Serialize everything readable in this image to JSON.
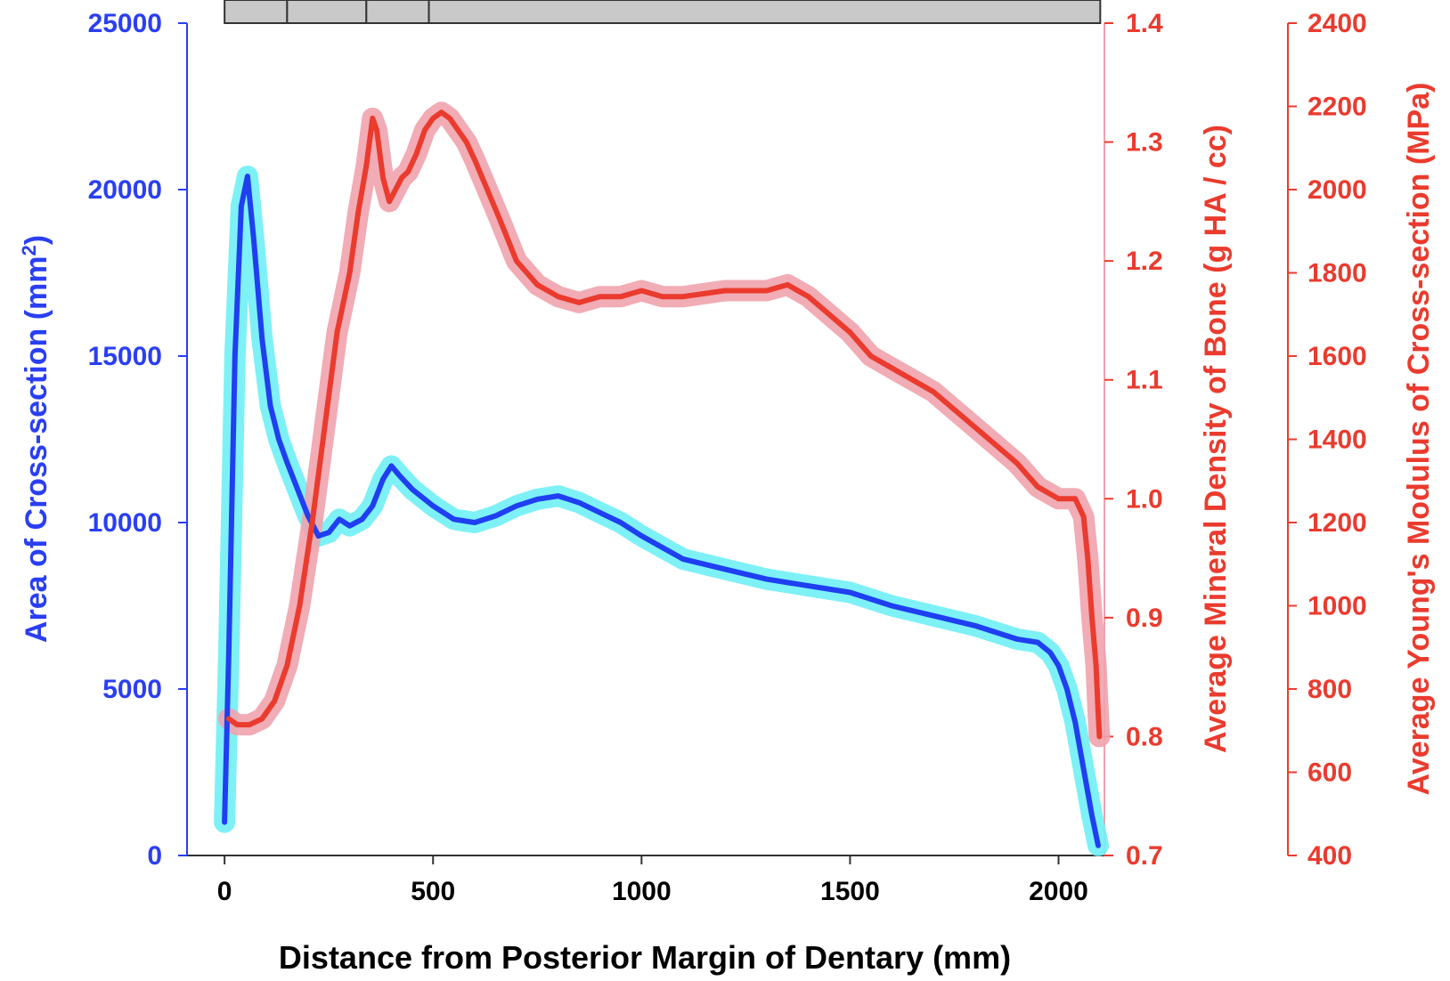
{
  "chart_data": {
    "type": "line",
    "xlabel": "Distance from Posterior Margin of Dentary (mm)",
    "xlim": [
      -90,
      2110
    ],
    "xticks": [
      0,
      500,
      1000,
      1500,
      2000
    ],
    "axes": {
      "left": {
        "label": "Area of Cross-section (mm",
        "label_sup": "2",
        "label_end": ")",
        "ylim": [
          0,
          25000
        ],
        "ticks": [
          0,
          5000,
          10000,
          15000,
          20000,
          25000
        ],
        "color": "#2a3ff2"
      },
      "right1": {
        "label": "Average Mineral Density of Bone (g HA / cc)",
        "ylim": [
          0.7,
          1.4
        ],
        "ticks": [
          "0.7",
          "0.8",
          "0.9",
          "1.0",
          "1.1",
          "1.2",
          "1.3",
          "1.4"
        ],
        "color": "#ea3b2e"
      },
      "right2": {
        "label": "Average Young's Modulus of Cross-section (MPa)",
        "ylim": [
          400,
          2400
        ],
        "ticks": [
          400,
          600,
          800,
          1000,
          1200,
          1400,
          1600,
          1800,
          2000,
          2200,
          2400
        ],
        "color": "#ea3b2e"
      }
    },
    "top_bar_boundaries": [
      0,
      150,
      340,
      490,
      2100
    ],
    "series": [
      {
        "axis": "left",
        "color": "#1f3ff0",
        "band_color": "#6ff0f5",
        "x": [
          0,
          10,
          25,
          40,
          55,
          70,
          90,
          110,
          130,
          150,
          175,
          200,
          225,
          250,
          275,
          300,
          330,
          355,
          380,
          400,
          420,
          450,
          500,
          550,
          600,
          650,
          700,
          750,
          800,
          850,
          900,
          950,
          1000,
          1100,
          1200,
          1300,
          1400,
          1500,
          1600,
          1700,
          1800,
          1900,
          1950,
          1980,
          2000,
          2020,
          2040,
          2060,
          2080,
          2095
        ],
        "y": [
          1000,
          6000,
          15000,
          19500,
          20400,
          18500,
          15500,
          13500,
          12500,
          11800,
          11000,
          10200,
          9600,
          9700,
          10100,
          9900,
          10100,
          10500,
          11300,
          11700,
          11400,
          11000,
          10500,
          10100,
          10000,
          10200,
          10500,
          10700,
          10800,
          10600,
          10300,
          10000,
          9600,
          8900,
          8600,
          8300,
          8100,
          7900,
          7500,
          7200,
          6900,
          6500,
          6400,
          6100,
          5700,
          5000,
          4000,
          2600,
          1200,
          300
        ]
      },
      {
        "axis": "right1",
        "color": "#ea3b2e",
        "band_color": "#f0a3ad",
        "x": [
          10,
          30,
          60,
          90,
          120,
          150,
          180,
          210,
          240,
          270,
          300,
          320,
          340,
          355,
          365,
          380,
          395,
          410,
          425,
          440,
          460,
          480,
          500,
          520,
          540,
          560,
          580,
          600,
          630,
          660,
          700,
          750,
          800,
          850,
          900,
          950,
          1000,
          1050,
          1100,
          1200,
          1300,
          1350,
          1400,
          1450,
          1500,
          1550,
          1600,
          1700,
          1800,
          1900,
          1950,
          2000,
          2040,
          2060,
          2070,
          2080,
          2090,
          2095,
          2098
        ],
        "y": [
          0.815,
          0.81,
          0.81,
          0.815,
          0.83,
          0.86,
          0.91,
          0.98,
          1.06,
          1.14,
          1.19,
          1.24,
          1.28,
          1.32,
          1.31,
          1.27,
          1.25,
          1.26,
          1.27,
          1.275,
          1.29,
          1.31,
          1.32,
          1.325,
          1.32,
          1.31,
          1.3,
          1.285,
          1.26,
          1.235,
          1.2,
          1.18,
          1.17,
          1.165,
          1.17,
          1.17,
          1.175,
          1.17,
          1.17,
          1.175,
          1.175,
          1.18,
          1.17,
          1.155,
          1.14,
          1.12,
          1.11,
          1.09,
          1.06,
          1.03,
          1.01,
          1.0,
          1.0,
          0.985,
          0.95,
          0.9,
          0.86,
          0.82,
          0.8
        ]
      }
    ]
  }
}
